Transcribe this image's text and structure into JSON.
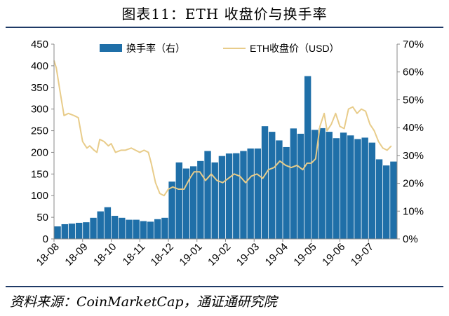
{
  "title": "图表11：ETH 收盘价与换手率",
  "source": "资料来源：CoinMarketCap，通证通研究院",
  "chart_data": {
    "type": "bar+line",
    "title": "图表11：ETH 收盘价与换手率",
    "legend_position": "top-center",
    "grid": false,
    "categories": [
      "18-08",
      "18-09",
      "18-10",
      "18-11",
      "18-12",
      "19-01",
      "19-02",
      "19-03",
      "19-04",
      "19-05",
      "19-06",
      "19-07"
    ],
    "y_left": {
      "ticks": [
        "0",
        "50",
        "100",
        "150",
        "200",
        "250",
        "300",
        "350",
        "400",
        "450"
      ],
      "range": [
        0,
        450
      ]
    },
    "y_right": {
      "ticks": [
        "0%",
        "10%",
        "20%",
        "30%",
        "40%",
        "50%",
        "60%",
        "70%"
      ],
      "range": [
        0,
        70
      ]
    },
    "series": [
      {
        "name": "换手率（右）",
        "kind": "bar",
        "axis": "right",
        "unit": "%",
        "color": "#1f6fa8",
        "x": [
          0,
          0.25,
          0.5,
          0.75,
          1,
          1.25,
          1.5,
          1.75,
          2,
          2.25,
          2.5,
          2.75,
          3,
          3.25,
          3.5,
          3.75,
          4,
          4.25,
          4.5,
          4.75,
          5,
          5.25,
          5.5,
          5.75,
          6,
          6.25,
          6.5,
          6.75,
          7,
          7.25,
          7.5,
          7.75,
          8,
          8.25,
          8.5,
          8.75,
          9,
          9.25,
          9.5,
          9.75,
          10,
          10.25,
          10.5,
          10.75,
          11,
          11.25,
          11.5,
          11.75
        ],
        "values": [
          4.5,
          5.3,
          5.5,
          5.8,
          6.0,
          7.6,
          9.9,
          11.4,
          8.3,
          7.6,
          6.9,
          6.9,
          6.4,
          6.2,
          7.1,
          7.6,
          20.6,
          27.5,
          25.3,
          26.1,
          28.0,
          31.6,
          27.5,
          29.8,
          30.7,
          30.8,
          31.6,
          32.5,
          32.5,
          40.5,
          38.5,
          35.4,
          33.0,
          39.7,
          37.8,
          58.5,
          39.2,
          39.8,
          38.5,
          36.2,
          38.2,
          37.2,
          35.9,
          36.4,
          34.6,
          28.6,
          26.4,
          27.8
        ]
      },
      {
        "name": "ETH收盘价（USD）",
        "kind": "line",
        "axis": "left",
        "unit": "USD",
        "color": "#e8cc8a",
        "x": [
          0,
          0.08,
          0.2,
          0.35,
          0.5,
          0.7,
          0.85,
          1.0,
          1.15,
          1.25,
          1.4,
          1.5,
          1.6,
          1.75,
          1.9,
          2.0,
          2.15,
          2.35,
          2.5,
          2.7,
          2.85,
          3.0,
          3.15,
          3.3,
          3.4,
          3.55,
          3.7,
          3.85,
          4.0,
          4.15,
          4.35,
          4.55,
          4.75,
          4.9,
          5.1,
          5.3,
          5.5,
          5.7,
          5.9,
          6.1,
          6.3,
          6.5,
          6.7,
          6.9,
          7.1,
          7.3,
          7.5,
          7.7,
          7.9,
          8.1,
          8.3,
          8.5,
          8.7,
          8.85,
          9.0,
          9.15,
          9.3,
          9.45,
          9.55,
          9.7,
          9.85,
          10.0,
          10.15,
          10.3,
          10.45,
          10.6,
          10.75,
          10.9,
          11.05,
          11.2,
          11.35,
          11.5,
          11.65,
          11.8
        ],
        "values": [
          412,
          395,
          345,
          285,
          290,
          285,
          280,
          225,
          210,
          215,
          205,
          200,
          230,
          225,
          215,
          220,
          200,
          205,
          205,
          210,
          205,
          200,
          205,
          200,
          175,
          130,
          105,
          100,
          115,
          120,
          115,
          115,
          140,
          155,
          155,
          135,
          150,
          135,
          130,
          140,
          150,
          145,
          130,
          145,
          150,
          140,
          160,
          165,
          180,
          170,
          165,
          170,
          160,
          175,
          175,
          185,
          260,
          290,
          250,
          265,
          290,
          260,
          255,
          300,
          305,
          290,
          300,
          295,
          265,
          250,
          225,
          210,
          205,
          215
        ]
      }
    ]
  }
}
